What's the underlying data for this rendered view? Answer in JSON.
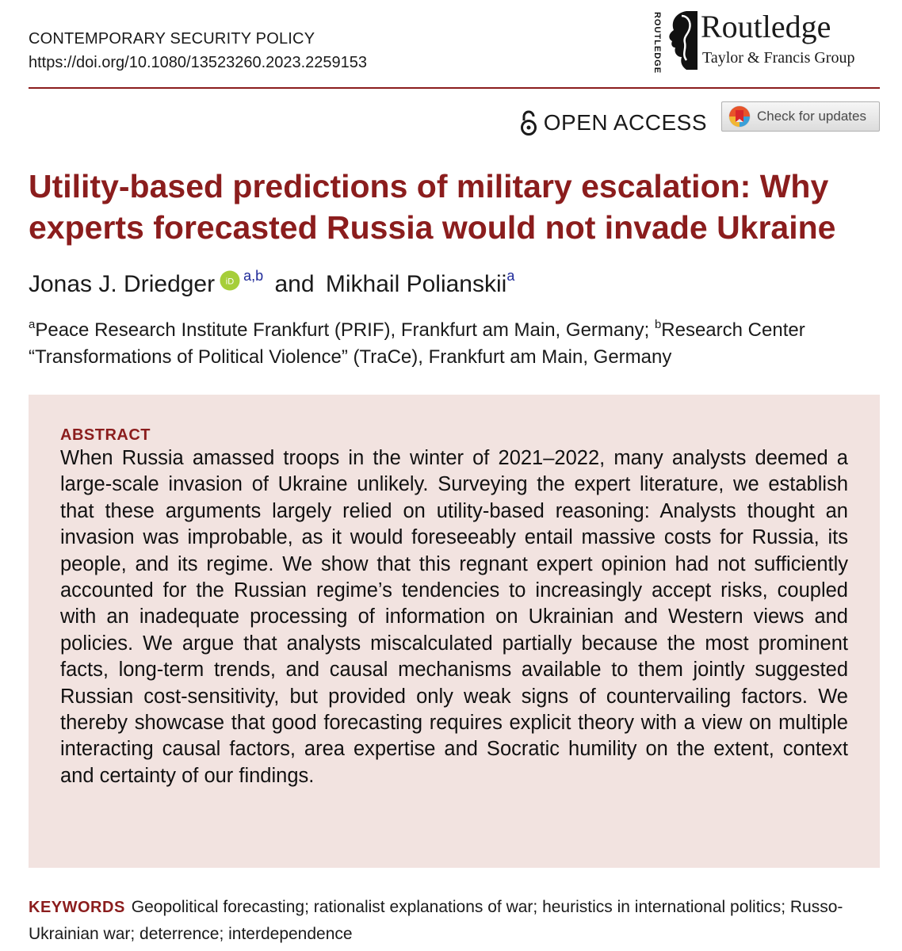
{
  "header": {
    "journal": "CONTEMPORARY SECURITY POLICY",
    "doi": "https://doi.org/10.1080/13523260.2023.2259153",
    "publisher_vertical": "ROUTLEDGE",
    "publisher_name": "Routledge",
    "publisher_group": "Taylor & Francis Group"
  },
  "access": {
    "label": "OPEN ACCESS",
    "icon": "open-lock-icon",
    "check_updates_label": "Check for updates",
    "check_updates_icon": "crossmark-icon"
  },
  "article": {
    "title": "Utility-based predictions of military escalation: Why experts forecasted Russia would not invade Ukraine",
    "authors": [
      {
        "name": "Jonas J. Driedger",
        "affiliations": "a,b",
        "orcid": true
      },
      {
        "name": "Mikhail Polianskii",
        "affiliations": "a",
        "orcid": false
      }
    ],
    "author_separator": "and",
    "affiliations": [
      {
        "mark": "a",
        "text": "Peace Research Institute Frankfurt (PRIF), Frankfurt am Main, Germany;"
      },
      {
        "mark": "b",
        "text": "Research Center “Transformations of Political Violence” (TraCe), Frankfurt am Main, Germany"
      }
    ]
  },
  "abstract": {
    "heading": "ABSTRACT",
    "text": "When Russia amassed troops in the winter of 2021–2022, many analysts deemed a large-scale invasion of Ukraine unlikely. Surveying the expert literature, we establish that these arguments largely relied on utility-based reasoning: Analysts thought an invasion was improbable, as it would foreseeably entail massive costs for Russia, its people, and its regime. We show that this regnant expert opinion had not sufficiently accounted for the Russian regime’s tendencies to increasingly accept risks, coupled with an inadequate processing of information on Ukrainian and Western views and policies. We argue that analysts miscalculated partially because the most prominent facts, long-term trends, and causal mechanisms available to them jointly suggested Russian cost-sensitivity, but provided only weak signs of countervailing factors. We thereby showcase that good forecasting requires explicit theory with a view on multiple interacting causal factors, area expertise and Socratic humility on the extent, context and certainty of our findings."
  },
  "keywords": {
    "label": "KEYWORDS",
    "text": "Geopolitical forecasting; rationalist explanations of war; heuristics in international politics; Russo-Ukrainian war; deterrence; interdependence"
  },
  "colors": {
    "accent": "#8b1d1d",
    "abstract_bg": "#f2e3e0",
    "orcid_green": "#a6ce39",
    "affiliation_link": "#1f2a99"
  }
}
